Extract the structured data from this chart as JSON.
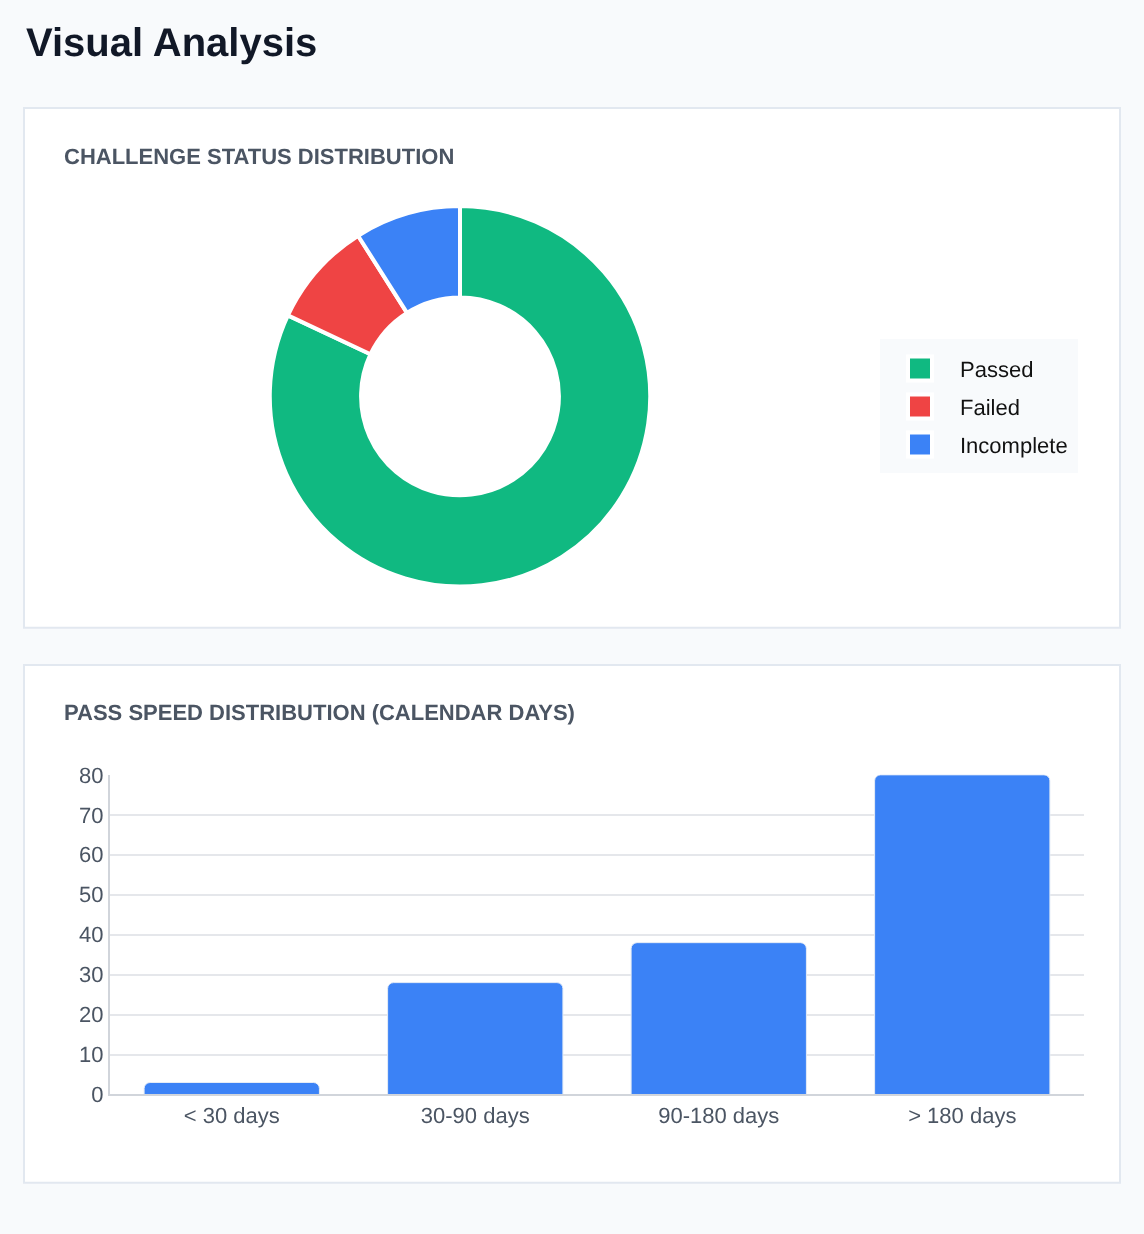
{
  "chart_data": [
    {
      "type": "donut",
      "title": "CHALLENGE STATUS DISTRIBUTION",
      "annotations": [
        "Visual Analysis"
      ],
      "categories": [
        "Passed",
        "Failed",
        "Incomplete"
      ],
      "values": [
        82,
        9,
        9
      ],
      "colors": [
        "#10b981",
        "#ef4444",
        "#3b82f6"
      ],
      "legend": "right"
    },
    {
      "type": "bar",
      "title": "PASS SPEED DISTRIBUTION (CALENDAR DAYS)",
      "categories": [
        "< 30 days",
        "30-90 days",
        "90-180 days",
        "> 180 days"
      ],
      "values": [
        3,
        28,
        38,
        80
      ],
      "color": "#3b82f6",
      "ylim": [
        0,
        80
      ],
      "yticks": [
        0,
        10,
        20,
        30,
        40,
        50,
        60,
        70,
        80
      ],
      "grid": "y"
    }
  ]
}
